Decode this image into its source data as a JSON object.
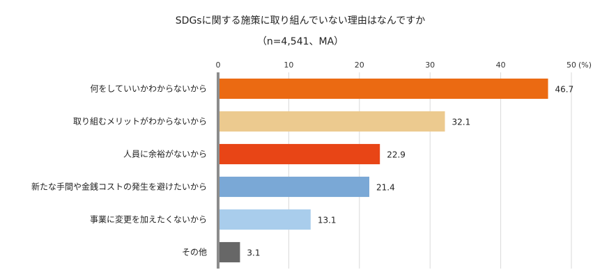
{
  "chart_data": {
    "type": "bar",
    "orientation": "horizontal",
    "title": "SDGsに関する施策に取り組んでいない理由はなんですか",
    "subtitle": "（n=4,541、MA）",
    "unit_label": "(%)",
    "xlim": [
      0,
      50
    ],
    "ticks": [
      0,
      10,
      20,
      30,
      40,
      50
    ],
    "grid": true,
    "categories": [
      "何をしていいかわからないから",
      "取り組むメリットがわからないから",
      "人員に余裕がないから",
      "新たな手間や金銭コストの発生を避けたいから",
      "事業に変更を加えたくないから",
      "その他"
    ],
    "values": [
      46.7,
      32.1,
      22.9,
      21.4,
      13.1,
      3.1
    ],
    "value_labels": [
      "46.7",
      "32.1",
      "22.9",
      "21.4",
      "13.1",
      "3.1"
    ],
    "colors": [
      "#eb6a12",
      "#ecca8f",
      "#e84516",
      "#7aa8d6",
      "#a9cdec",
      "#676767"
    ],
    "axis_color": "#8c8c8c"
  }
}
